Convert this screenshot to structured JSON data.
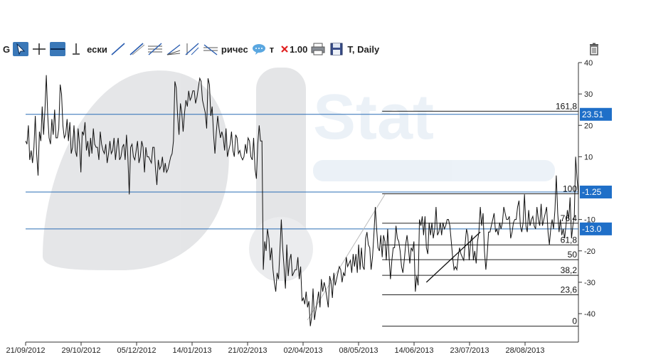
{
  "toolbar": {
    "items": [
      {
        "name": "cursor-icon",
        "selected": true
      },
      {
        "name": "crosshair-icon"
      },
      {
        "name": "horizontal-line-icon",
        "selected": true
      },
      {
        "name": "vertical-line-icon"
      }
    ],
    "text1": "ески",
    "lines": [
      {
        "name": "trend-line-icon"
      },
      {
        "name": "ray-line-icon"
      },
      {
        "name": "channel-icon"
      },
      {
        "name": "fan-icon"
      },
      {
        "name": "gann-icon"
      },
      {
        "name": "fib-fan-icon"
      }
    ],
    "text2": "ричес",
    "comment_icon": "speech-bubble-icon",
    "text3": "т",
    "delete_icon": "red-x-icon",
    "value": "1.00",
    "print_icon": "printer-icon",
    "save_icon": "floppy-icon",
    "symbol": "T, Daily",
    "trash_icon": "trash-icon"
  },
  "watermark": "Stat",
  "chart_data": {
    "type": "line",
    "x_labels": [
      "21/09/2012",
      "29/10/2012",
      "05/12/2012",
      "14/01/2013",
      "21/02/2013",
      "02/04/2013",
      "08/05/2013",
      "14/06/2013",
      "23/07/2013",
      "28/08/2013"
    ],
    "y_ticks": [
      40,
      30,
      20,
      10,
      -10,
      -20,
      -30,
      -40
    ],
    "ylim": [
      -48,
      40
    ],
    "series": [
      {
        "values": [
          15,
          14,
          20,
          9,
          12,
          8,
          13,
          23,
          11,
          4,
          18,
          15,
          26,
          17,
          25,
          36,
          23,
          16,
          14,
          22,
          17,
          25,
          16,
          16,
          19,
          33,
          30,
          20,
          16,
          17,
          22,
          15,
          21,
          11,
          13,
          20,
          12,
          10,
          19,
          14,
          5,
          18,
          17,
          21,
          12,
          15,
          10,
          16,
          11,
          19,
          14,
          13,
          13,
          9,
          18,
          14,
          12,
          11,
          14,
          8,
          11,
          15,
          11,
          12,
          16,
          9,
          13,
          16,
          9,
          10,
          13,
          14,
          9,
          17,
          10,
          -2,
          13,
          14,
          10,
          9,
          12,
          15,
          8,
          10,
          15,
          13,
          5,
          13,
          10,
          10,
          9,
          8,
          13,
          13,
          6,
          1,
          9,
          6,
          7,
          10,
          5,
          8,
          5,
          6,
          8,
          10,
          11,
          15,
          34,
          32,
          23,
          17,
          27,
          24,
          18,
          24,
          28,
          26,
          31,
          28,
          29,
          31,
          31,
          27,
          29,
          32,
          35,
          34,
          28,
          26,
          24,
          19,
          35,
          33,
          23,
          26,
          17,
          11,
          18,
          23,
          19,
          16,
          18,
          16,
          12,
          19,
          10,
          12,
          14,
          18,
          12,
          10,
          17,
          16,
          11,
          12,
          10,
          9,
          10,
          14,
          11,
          16,
          15,
          10,
          9,
          16,
          6,
          3,
          14,
          20,
          15,
          15,
          -26,
          -17,
          -20,
          -13,
          -16,
          -23,
          -19,
          -26,
          -30,
          -33,
          -27,
          -29,
          -20,
          -10,
          -19,
          -25,
          -32,
          -18,
          -28,
          -23,
          -21,
          -28,
          -27,
          -26,
          -26,
          -22,
          -29,
          -25,
          -36,
          -35,
          -37,
          -33,
          -38,
          -36,
          -44,
          -41,
          -32,
          -42,
          -39,
          -36,
          -33,
          -38,
          -29,
          -33,
          -30,
          -32,
          -35,
          -38,
          -28,
          -30,
          -35,
          -27,
          -31,
          -29,
          -27,
          -25,
          -26,
          -30,
          -27,
          -28,
          -22,
          -25,
          -24,
          -23,
          -27,
          -21,
          -25,
          -21,
          -27,
          -18,
          -26,
          -19,
          -25,
          -26,
          -16,
          -14,
          -18,
          -19,
          -26,
          -22,
          -15,
          -6,
          -13,
          -19,
          -20,
          -15,
          -22,
          -15,
          -17,
          -23,
          -13,
          -22,
          -29,
          -23,
          -19,
          -19,
          -12,
          -16,
          -17,
          -20,
          -25,
          -27,
          -23,
          -18,
          -15,
          -19,
          -24,
          -19,
          -20,
          -17,
          -33,
          -28,
          -31,
          -10,
          -12,
          -9,
          -15,
          -9,
          -19,
          -21,
          -11,
          -15,
          -11,
          -16,
          -13,
          -6,
          -15,
          -14,
          -11,
          -15,
          -11,
          -13,
          -12,
          -10,
          -10,
          -12,
          -17,
          -22,
          -26,
          -25,
          -26,
          -22,
          -19,
          -21,
          -22,
          -23,
          -18,
          -13,
          -15,
          -23,
          -17,
          -15,
          -23,
          -20,
          -24,
          -17,
          -14,
          -6,
          -12,
          -8,
          -20,
          -26,
          -21,
          -14,
          -14,
          -12,
          -10,
          -8,
          -14,
          -13,
          -15,
          -11,
          -13,
          -11,
          -6,
          -8,
          -10,
          -10,
          -9,
          -16,
          -14,
          -11,
          -10,
          -10,
          -6,
          -4,
          -12,
          -14,
          -11,
          -2,
          -12,
          -14,
          -7,
          -12,
          -10,
          -9,
          -12,
          -13,
          -6,
          -10,
          -12,
          -5,
          -12,
          -10,
          -8,
          -6,
          -14,
          -18,
          -13,
          -10,
          -13,
          -7,
          4,
          -8,
          -14,
          -10,
          -15,
          -13,
          -16,
          -12,
          -7,
          -10,
          -3,
          -16,
          -12,
          -9,
          10,
          3,
          -2
        ]
      }
    ],
    "horizontal_lines": [
      {
        "label": "23.51",
        "value": 23.51
      },
      {
        "label": "-1.25",
        "value": -1.25
      },
      {
        "label": "-13.0",
        "value": -13.0
      }
    ],
    "fibonacci": {
      "x_start_index": 258,
      "levels": [
        {
          "label": "161,8",
          "value": 24.5
        },
        {
          "label": "100",
          "value": -1.8
        },
        {
          "label": "76,4",
          "value": -11.2
        },
        {
          "label": "61,8",
          "value": -18.1
        },
        {
          "label": "50",
          "value": -22.8
        },
        {
          "label": "38,2",
          "value": -27.8
        },
        {
          "label": "23,6",
          "value": -34.0
        },
        {
          "label": "0",
          "value": -44.0
        }
      ]
    },
    "trend_lines": [
      {
        "from_index": 204,
        "from_value": -42,
        "to_index": 260,
        "to_value": -2
      },
      {
        "from_index": 290,
        "from_value": -30,
        "to_index": 329,
        "to_value": -14
      }
    ]
  }
}
